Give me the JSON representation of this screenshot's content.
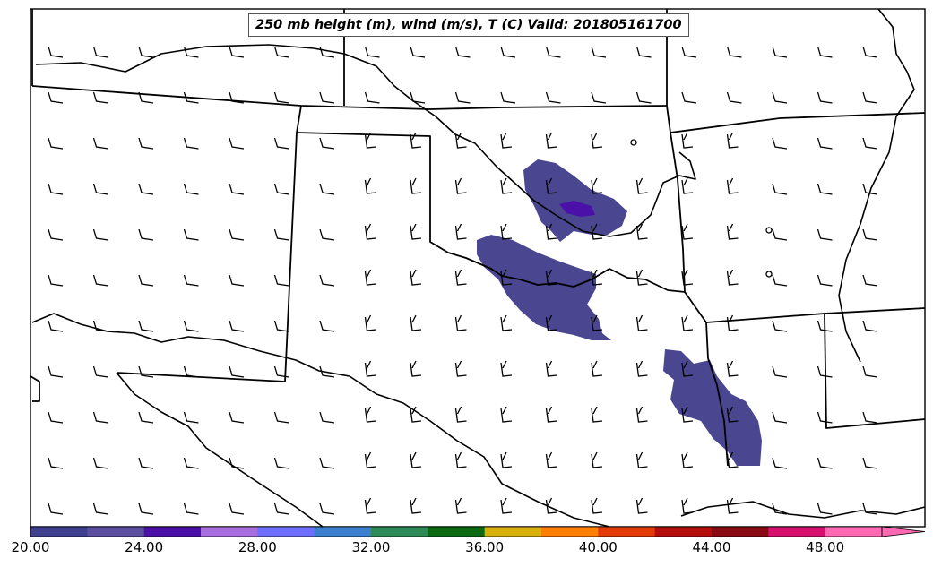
{
  "title": "250 mb height (m), wind (m/s), T (C) Valid: 201805161700",
  "colorbar": {
    "tick_labels": [
      "20.00",
      "24.00",
      "28.00",
      "32.00",
      "36.00",
      "40.00",
      "44.00",
      "48.00"
    ],
    "colors": [
      "#3f3f8f",
      "#5c4fa0",
      "#4b10a8",
      "#a86ee0",
      "#6f6fff",
      "#3d7fcf",
      "#2e8b57",
      "#0b6a12",
      "#d8b00a",
      "#ff7f00",
      "#e33a08",
      "#b50c0c",
      "#8a0a14",
      "#d70f6e",
      "#ff69b4"
    ]
  },
  "wind_barbs": {
    "arrows": "northwest-to-west flow with half and full barbs across the domain"
  }
}
